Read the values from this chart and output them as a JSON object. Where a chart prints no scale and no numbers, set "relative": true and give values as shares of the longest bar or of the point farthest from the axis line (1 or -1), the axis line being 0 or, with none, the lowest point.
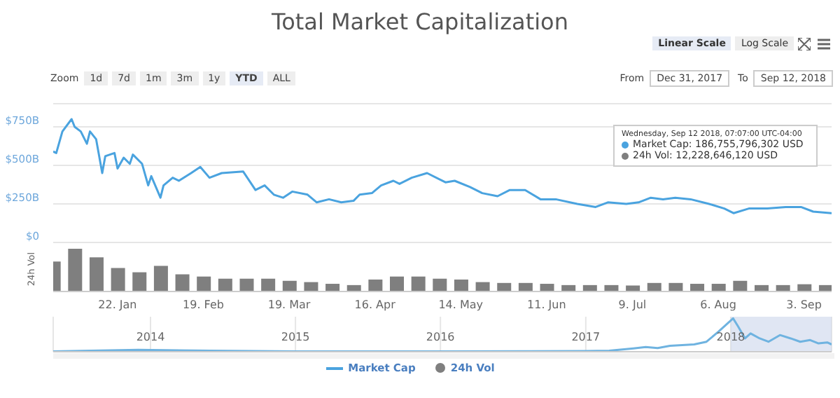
{
  "chart_data": [
    {
      "type": "line",
      "title": "Total Market Capitalization",
      "xlim": [
        "2018-01-01",
        "2018-09-12"
      ],
      "ylim": [
        0,
        900
      ],
      "yticks": [
        {
          "value": 0,
          "label": "$0"
        },
        {
          "value": 250,
          "label": "$250B"
        },
        {
          "value": 500,
          "label": "$500B"
        },
        {
          "value": 750,
          "label": "$750B"
        }
      ],
      "grid": "y",
      "tick_labels": "y",
      "legend": "bottom",
      "marker": "none",
      "series": [
        {
          "name": "Market Cap",
          "color": "#4aa3df",
          "x": [
            "2018-01-01",
            "2018-01-02",
            "2018-01-04",
            "2018-01-07",
            "2018-01-08",
            "2018-01-10",
            "2018-01-12",
            "2018-01-13",
            "2018-01-15",
            "2018-01-17",
            "2018-01-18",
            "2018-01-21",
            "2018-01-22",
            "2018-01-24",
            "2018-01-26",
            "2018-01-27",
            "2018-01-30",
            "2018-02-01",
            "2018-02-02",
            "2018-02-05",
            "2018-02-06",
            "2018-02-09",
            "2018-02-11",
            "2018-02-15",
            "2018-02-18",
            "2018-02-21",
            "2018-02-25",
            "2018-03-04",
            "2018-03-08",
            "2018-03-11",
            "2018-03-14",
            "2018-03-17",
            "2018-03-20",
            "2018-03-25",
            "2018-03-28",
            "2018-04-01",
            "2018-04-05",
            "2018-04-09",
            "2018-04-11",
            "2018-04-15",
            "2018-04-18",
            "2018-04-22",
            "2018-04-24",
            "2018-04-28",
            "2018-05-03",
            "2018-05-09",
            "2018-05-12",
            "2018-05-17",
            "2018-05-21",
            "2018-05-26",
            "2018-05-30",
            "2018-06-04",
            "2018-06-09",
            "2018-06-14",
            "2018-06-21",
            "2018-06-27",
            "2018-07-01",
            "2018-07-07",
            "2018-07-11",
            "2018-07-15",
            "2018-07-19",
            "2018-07-23",
            "2018-07-28",
            "2018-08-03",
            "2018-08-08",
            "2018-08-11",
            "2018-08-16",
            "2018-08-22",
            "2018-08-28",
            "2018-09-02",
            "2018-09-06",
            "2018-09-12"
          ],
          "values": [
            590,
            580,
            720,
            800,
            750,
            720,
            640,
            720,
            670,
            450,
            560,
            580,
            480,
            550,
            510,
            570,
            510,
            370,
            430,
            290,
            370,
            420,
            400,
            450,
            490,
            420,
            450,
            460,
            340,
            370,
            310,
            290,
            330,
            310,
            260,
            280,
            260,
            270,
            310,
            320,
            370,
            400,
            380,
            420,
            450,
            390,
            400,
            360,
            320,
            300,
            340,
            340,
            280,
            280,
            250,
            230,
            260,
            250,
            260,
            290,
            280,
            290,
            280,
            250,
            220,
            190,
            220,
            220,
            230,
            230,
            200,
            190
          ]
        }
      ],
      "annotations": [
        "Wednesday, Sep 12 2018, 07:07:00 UTC-04:00",
        "Market Cap: 186,755,796,302 USD",
        "24h Vol: 12,228,646,120 USD",
        "Linear Scale",
        "Log Scale",
        "Zoom",
        "1d",
        "7d",
        "1m",
        "3m",
        "1y",
        "YTD",
        "ALL",
        "From",
        "Dec 31, 2017",
        "To",
        "Sep 12, 2018"
      ]
    },
    {
      "type": "bar",
      "relative": true,
      "ylabel": "24h Vol",
      "xlim": [
        "2018-01-01",
        "2018-09-12"
      ],
      "tick_labels": "x",
      "xticks": [
        {
          "value": "2018-01-22",
          "label": "22. Jan"
        },
        {
          "value": "2018-02-19",
          "label": "19. Feb"
        },
        {
          "value": "2018-03-19",
          "label": "19. Mar"
        },
        {
          "value": "2018-04-16",
          "label": "16. Apr"
        },
        {
          "value": "2018-05-14",
          "label": "14. May"
        },
        {
          "value": "2018-06-11",
          "label": "11. Jun"
        },
        {
          "value": "2018-07-09",
          "label": "9. Jul"
        },
        {
          "value": "2018-08-06",
          "label": "6. Aug"
        },
        {
          "value": "2018-09-03",
          "label": "3. Sep"
        }
      ],
      "series": [
        {
          "name": "24h Vol",
          "color": "#7f7f7f",
          "x": [
            "2018-01-01",
            "2018-01-08",
            "2018-01-15",
            "2018-01-22",
            "2018-01-29",
            "2018-02-05",
            "2018-02-12",
            "2018-02-19",
            "2018-02-26",
            "2018-03-05",
            "2018-03-12",
            "2018-03-19",
            "2018-03-26",
            "2018-04-02",
            "2018-04-09",
            "2018-04-16",
            "2018-04-23",
            "2018-04-30",
            "2018-05-07",
            "2018-05-14",
            "2018-05-21",
            "2018-05-28",
            "2018-06-04",
            "2018-06-11",
            "2018-06-18",
            "2018-06-25",
            "2018-07-02",
            "2018-07-09",
            "2018-07-16",
            "2018-07-23",
            "2018-07-30",
            "2018-08-06",
            "2018-08-13",
            "2018-08-20",
            "2018-08-27",
            "2018-09-03",
            "2018-09-10"
          ],
          "values": [
            0.7,
            1,
            0.8,
            0.55,
            0.45,
            0.6,
            0.4,
            0.35,
            0.3,
            0.3,
            0.3,
            0.25,
            0.22,
            0.18,
            0.15,
            0.28,
            0.35,
            0.35,
            0.3,
            0.28,
            0.22,
            0.2,
            0.2,
            0.18,
            0.15,
            0.15,
            0.15,
            0.14,
            0.2,
            0.2,
            0.18,
            0.18,
            0.25,
            0.15,
            0.15,
            0.17,
            0.15
          ]
        }
      ]
    },
    {
      "type": "line",
      "relative": true,
      "xlim": [
        "2013-05",
        "2018-09-12"
      ],
      "xticks": [
        "2014",
        "2015",
        "2016",
        "2017",
        "2018"
      ],
      "grid": "x",
      "tick_labels": "x",
      "marker": "none",
      "bands": [
        {
          "axis": "x",
          "from": "2018-01-01",
          "to": "2018-09-12",
          "color": "#ccd6eb"
        }
      ],
      "series": [
        {
          "color": "#6fb3e0",
          "x": [
            "2013-05",
            "2013-12",
            "2014-06",
            "2015-01",
            "2016-01",
            "2017-01",
            "2017-03",
            "2017-05",
            "2017-06",
            "2017-07",
            "2017-08",
            "2017-09",
            "2017-10",
            "2017-11",
            "2017-12",
            "2018-01-07",
            "2018-01-20",
            "2018-02-06",
            "2018-02-20",
            "2018-03-15",
            "2018-04-06",
            "2018-05-05",
            "2018-06-01",
            "2018-06-25",
            "2018-07-20",
            "2018-08-10",
            "2018-09-01",
            "2018-09-12"
          ],
          "values": [
            0.01,
            0.06,
            0.03,
            0.01,
            0.01,
            0.02,
            0.03,
            0.1,
            0.14,
            0.11,
            0.18,
            0.2,
            0.22,
            0.3,
            0.6,
            1,
            0.75,
            0.4,
            0.55,
            0.4,
            0.3,
            0.5,
            0.4,
            0.3,
            0.35,
            0.25,
            0.28,
            0.22
          ]
        }
      ]
    }
  ]
}
